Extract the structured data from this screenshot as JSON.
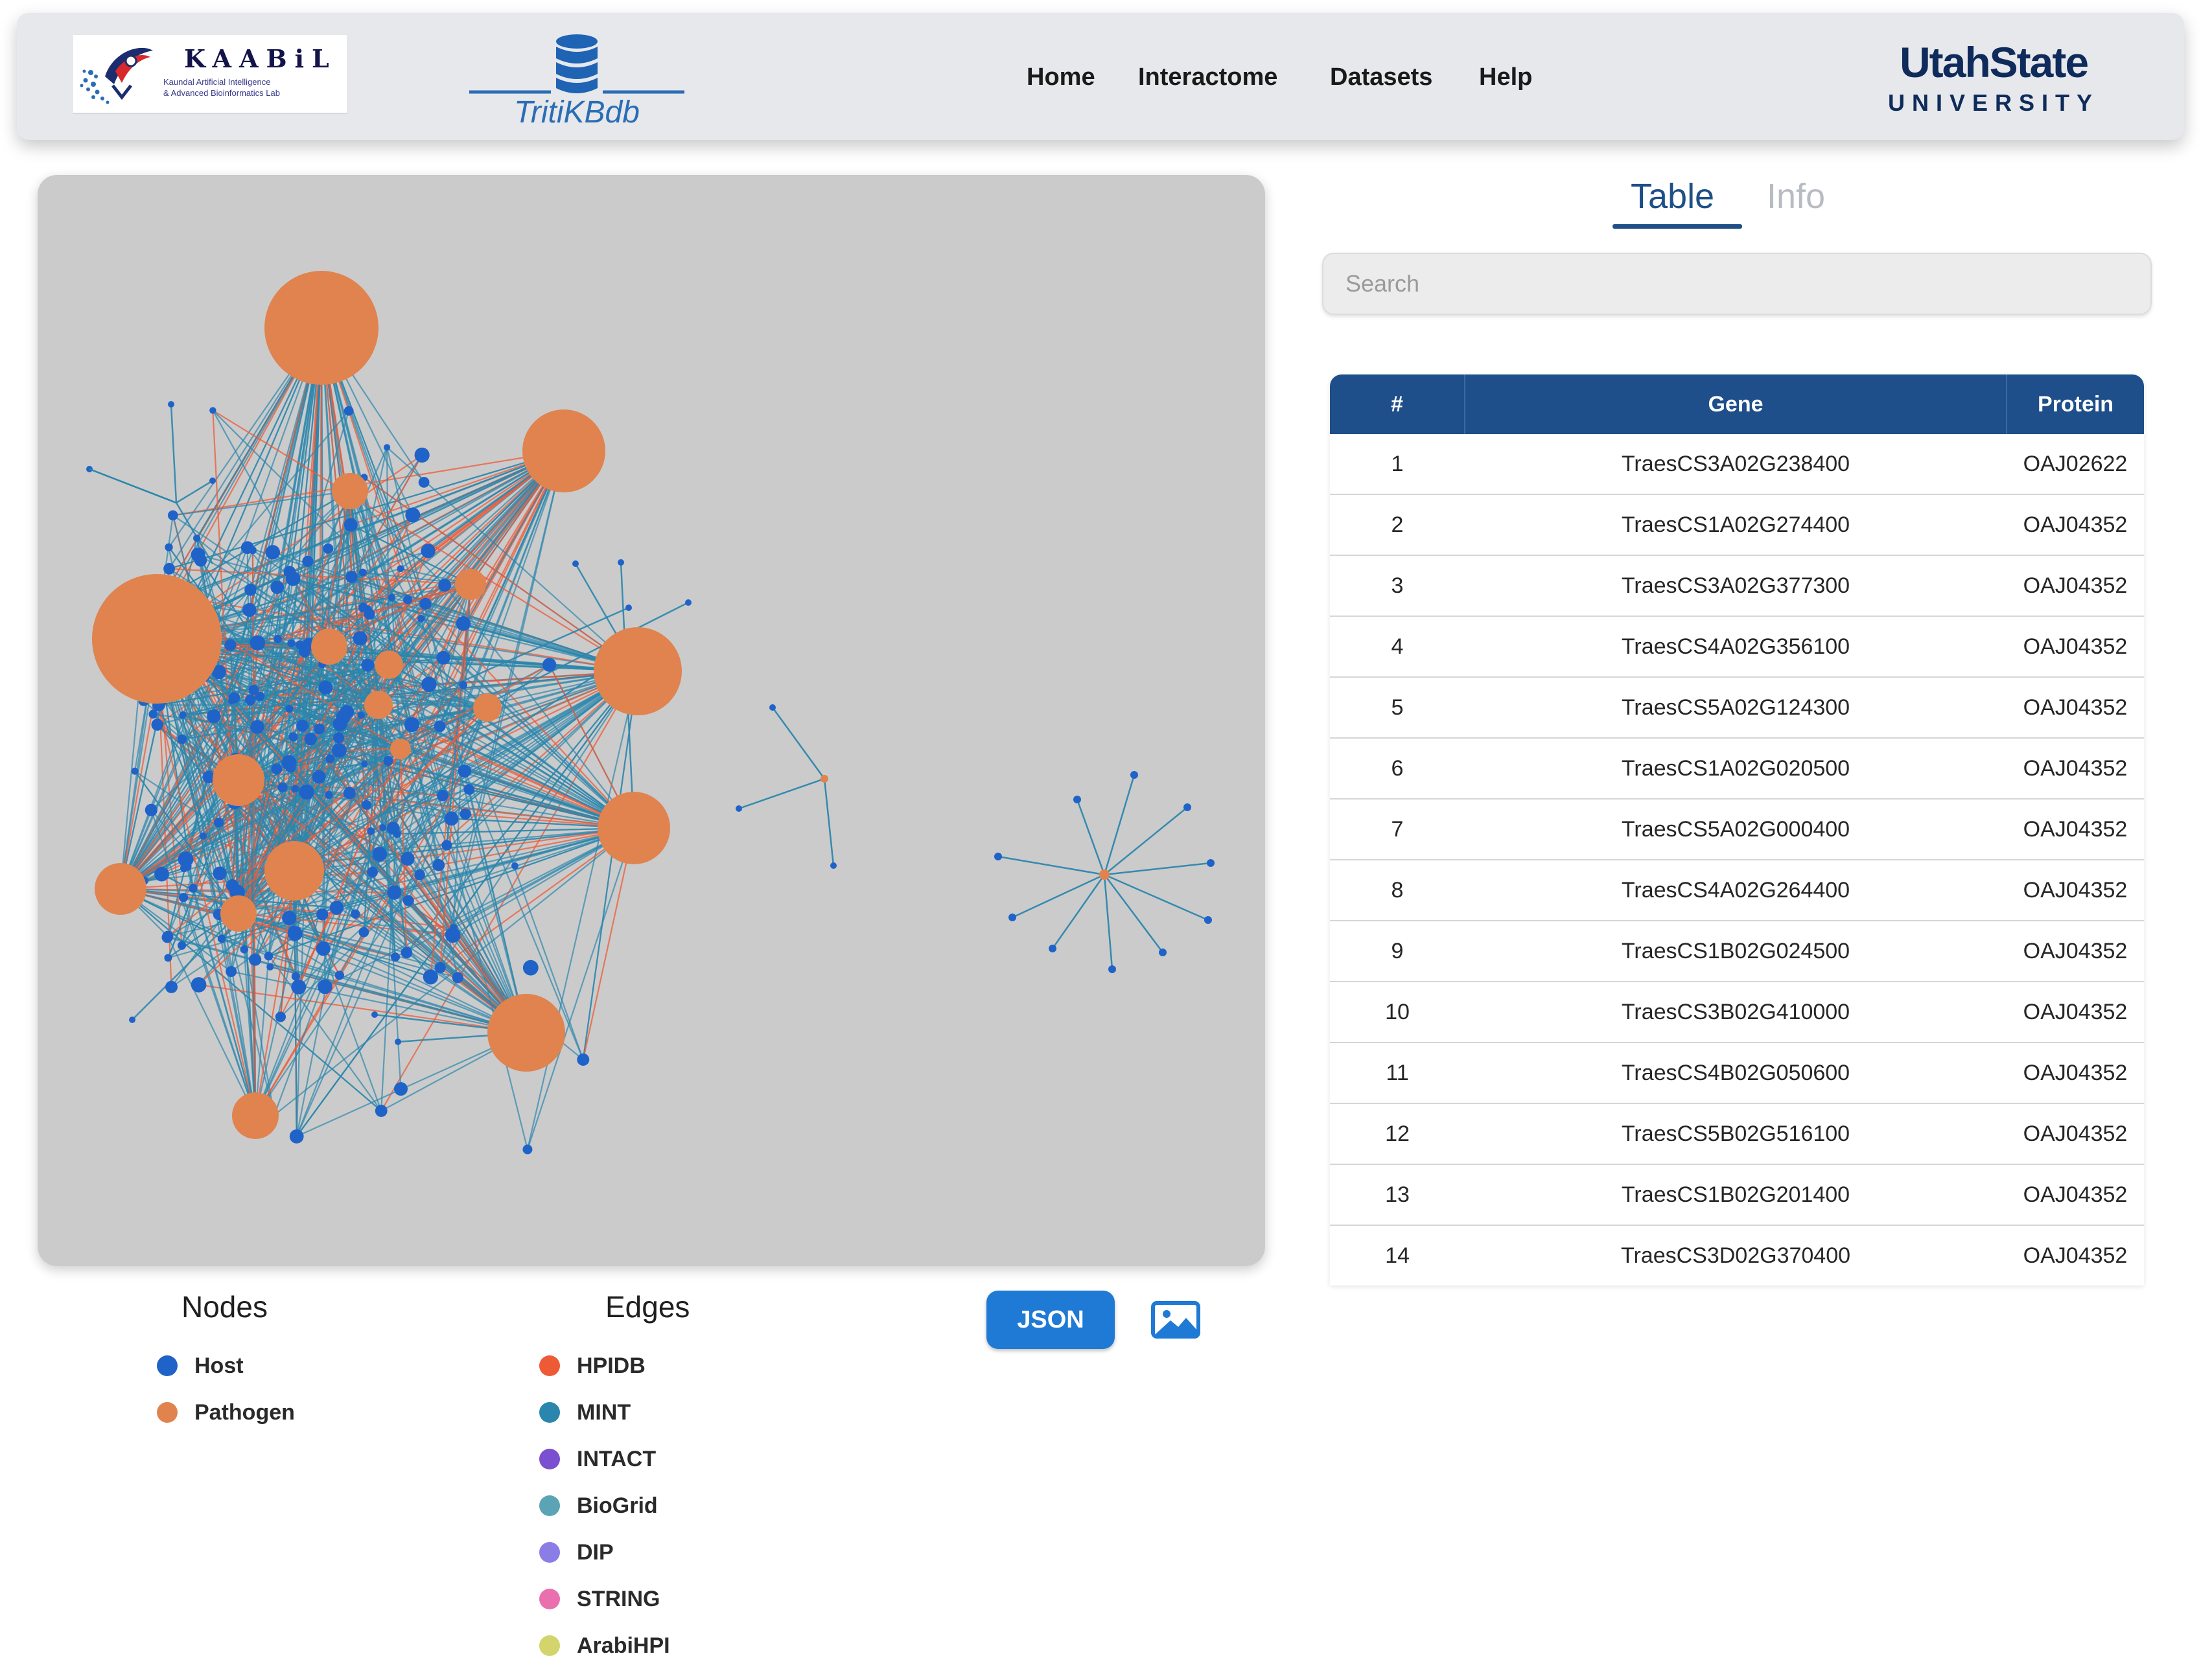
{
  "header": {
    "kaabil_logo": {
      "name": "KAABiL",
      "tagline_line1": "Kaundal Artificial Intelligence",
      "tagline_line2": "& Advanced Bioinformatics Lab",
      "icon": "kaabil-logo-icon"
    },
    "site_logo": {
      "label": "TritiKBdb",
      "icon": "database-icon"
    },
    "nav": [
      "Home",
      "Interactome",
      "Datasets",
      "Help"
    ],
    "university_logo": {
      "line1": "UtahState",
      "line2": "UNIVERSITY"
    }
  },
  "colors": {
    "host": "#1f63c9",
    "pathogen": "#e0834e",
    "hpidb": "#ef5a36",
    "mint": "#2b86ad",
    "intact": "#7a4fd0",
    "biogrid": "#5aa4b6",
    "dip": "#8a7ee6",
    "string": "#ea6fae",
    "arabihpi": "#d4d46c",
    "primary_button": "#1f7ad6",
    "table_header": "#1e4f8a"
  },
  "legend": {
    "nodes_title": "Nodes",
    "nodes": [
      {
        "label": "Host",
        "color": "#1f63c9"
      },
      {
        "label": "Pathogen",
        "color": "#e0834e"
      }
    ],
    "edges_title": "Edges",
    "edges": [
      {
        "label": "HPIDB",
        "color": "#ef5a36"
      },
      {
        "label": "MINT",
        "color": "#2b86ad"
      },
      {
        "label": "INTACT",
        "color": "#7a4fd0"
      },
      {
        "label": "BioGrid",
        "color": "#5aa4b6"
      },
      {
        "label": "DIP",
        "color": "#8a7ee6"
      },
      {
        "label": "STRING",
        "color": "#ea6fae"
      },
      {
        "label": "ArabiHPI",
        "color": "#d4d46c"
      }
    ]
  },
  "actions": {
    "json_label": "JSON",
    "image_icon": "image-icon"
  },
  "tabs": [
    {
      "label": "Table",
      "active": true
    },
    {
      "label": "Info",
      "active": false
    }
  ],
  "search": {
    "placeholder": "Search",
    "value": ""
  },
  "table": {
    "headers": [
      "#",
      "Gene",
      "Protein"
    ],
    "rows": [
      [
        "1",
        "TraesCS3A02G238400",
        "OAJ02622"
      ],
      [
        "2",
        "TraesCS1A02G274400",
        "OAJ04352"
      ],
      [
        "3",
        "TraesCS3A02G377300",
        "OAJ04352"
      ],
      [
        "4",
        "TraesCS4A02G356100",
        "OAJ04352"
      ],
      [
        "5",
        "TraesCS5A02G124300",
        "OAJ04352"
      ],
      [
        "6",
        "TraesCS1A02G020500",
        "OAJ04352"
      ],
      [
        "7",
        "TraesCS5A02G000400",
        "OAJ04352"
      ],
      [
        "8",
        "TraesCS4A02G264400",
        "OAJ04352"
      ],
      [
        "9",
        "TraesCS1B02G024500",
        "OAJ04352"
      ],
      [
        "10",
        "TraesCS3B02G410000",
        "OAJ04352"
      ],
      [
        "11",
        "TraesCS4B02G050600",
        "OAJ04352"
      ],
      [
        "12",
        "TraesCS5B02G516100",
        "OAJ04352"
      ],
      [
        "13",
        "TraesCS1B02G201400",
        "OAJ04352"
      ],
      [
        "14",
        "TraesCS3D02G370400",
        "OAJ04352"
      ]
    ]
  }
}
